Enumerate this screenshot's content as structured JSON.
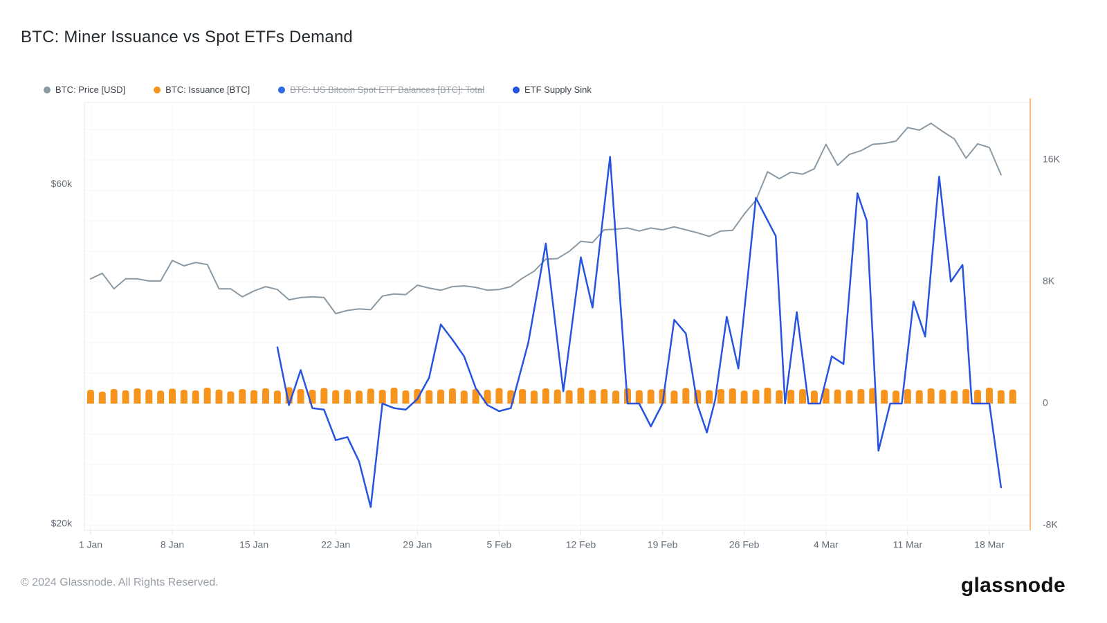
{
  "header": {
    "title": "BTC: Miner Issuance vs Spot ETFs Demand"
  },
  "legend": {
    "items": [
      {
        "label": "BTC: Price [USD]",
        "color": "#8A99A4",
        "disabled": false
      },
      {
        "label": "BTC: Issuance [BTC]",
        "color": "#F7941E",
        "disabled": false
      },
      {
        "label": "BTC: US Bitcoin Spot ETF Balances [BTC]: Total",
        "color": "#2E6BE6",
        "disabled": true
      },
      {
        "label": "ETF Supply Sink",
        "color": "#2653DF",
        "disabled": false
      }
    ]
  },
  "footer": {
    "copyright": "© 2024 Glassnode. All Rights Reserved.",
    "brand": "glassnode"
  },
  "chart_data": {
    "type": "mixed",
    "title": "BTC: Miner Issuance vs Spot ETFs Demand",
    "x_unit": "days since 1 Jan 2024",
    "x_ticks": [
      {
        "day": 0,
        "label": "1 Jan"
      },
      {
        "day": 7,
        "label": "8 Jan"
      },
      {
        "day": 14,
        "label": "15 Jan"
      },
      {
        "day": 21,
        "label": "22 Jan"
      },
      {
        "day": 28,
        "label": "29 Jan"
      },
      {
        "day": 35,
        "label": "5 Feb"
      },
      {
        "day": 42,
        "label": "12 Feb"
      },
      {
        "day": 49,
        "label": "19 Feb"
      },
      {
        "day": 56,
        "label": "26 Feb"
      },
      {
        "day": 63,
        "label": "4 Mar"
      },
      {
        "day": 70,
        "label": "11 Mar"
      },
      {
        "day": 77,
        "label": "18 Mar"
      }
    ],
    "left_axis": {
      "type": "log",
      "range": [
        19600,
        78200
      ],
      "ticks": [
        {
          "value": 60000,
          "label": "$60k"
        },
        {
          "value": 20000,
          "label": "$20k"
        }
      ]
    },
    "right_axis": {
      "type": "linear",
      "range": [
        -8320,
        19770
      ],
      "grid_step": 2000,
      "ticks": [
        {
          "value": 16000,
          "label": "16K"
        },
        {
          "value": 8000,
          "label": "8K"
        },
        {
          "value": 0,
          "label": "0"
        },
        {
          "value": -8000,
          "label": "-8K"
        }
      ]
    },
    "series": [
      {
        "name": "BTC: Price [USD]",
        "type": "line",
        "axis": "left",
        "color": "#8A99A4",
        "points": [
          [
            0,
            44200
          ],
          [
            1,
            45000
          ],
          [
            2,
            42800
          ],
          [
            3,
            44200
          ],
          [
            4,
            44200
          ],
          [
            5,
            43900
          ],
          [
            6,
            43900
          ],
          [
            7,
            46900
          ],
          [
            8,
            46100
          ],
          [
            9,
            46600
          ],
          [
            10,
            46300
          ],
          [
            11,
            42800
          ],
          [
            12,
            42800
          ],
          [
            13,
            41700
          ],
          [
            14,
            42500
          ],
          [
            15,
            43100
          ],
          [
            16,
            42700
          ],
          [
            17,
            41300
          ],
          [
            18,
            41600
          ],
          [
            19,
            41700
          ],
          [
            20,
            41600
          ],
          [
            21,
            39500
          ],
          [
            22,
            39900
          ],
          [
            23,
            40100
          ],
          [
            24,
            40000
          ],
          [
            25,
            41800
          ],
          [
            26,
            42100
          ],
          [
            27,
            42000
          ],
          [
            28,
            43300
          ],
          [
            29,
            42900
          ],
          [
            30,
            42600
          ],
          [
            31,
            43100
          ],
          [
            32,
            43200
          ],
          [
            33,
            43000
          ],
          [
            34,
            42600
          ],
          [
            35,
            42700
          ],
          [
            36,
            43100
          ],
          [
            37,
            44300
          ],
          [
            38,
            45300
          ],
          [
            39,
            47100
          ],
          [
            40,
            47200
          ],
          [
            41,
            48300
          ],
          [
            42,
            49900
          ],
          [
            43,
            49700
          ],
          [
            44,
            51800
          ],
          [
            45,
            51900
          ],
          [
            46,
            52100
          ],
          [
            47,
            51600
          ],
          [
            48,
            52100
          ],
          [
            49,
            51800
          ],
          [
            50,
            52300
          ],
          [
            51,
            51800
          ],
          [
            52,
            51300
          ],
          [
            53,
            50700
          ],
          [
            54,
            51600
          ],
          [
            55,
            51700
          ],
          [
            56,
            54500
          ],
          [
            57,
            57000
          ],
          [
            58,
            62500
          ],
          [
            59,
            61100
          ],
          [
            60,
            62400
          ],
          [
            61,
            62000
          ],
          [
            62,
            63100
          ],
          [
            63,
            68300
          ],
          [
            64,
            63800
          ],
          [
            65,
            66100
          ],
          [
            66,
            66900
          ],
          [
            67,
            68300
          ],
          [
            68,
            68500
          ],
          [
            69,
            69000
          ],
          [
            70,
            72100
          ],
          [
            71,
            71500
          ],
          [
            72,
            73100
          ],
          [
            73,
            71200
          ],
          [
            74,
            69500
          ],
          [
            75,
            65300
          ],
          [
            76,
            68400
          ],
          [
            77,
            67600
          ],
          [
            78,
            61900
          ]
        ]
      },
      {
        "name": "BTC: Issuance [BTC]",
        "type": "bar",
        "axis": "right",
        "color": "#F7941E",
        "points": [
          [
            0,
            900
          ],
          [
            1,
            780
          ],
          [
            2,
            950
          ],
          [
            3,
            870
          ],
          [
            4,
            1000
          ],
          [
            5,
            920
          ],
          [
            6,
            850
          ],
          [
            7,
            980
          ],
          [
            8,
            900
          ],
          [
            9,
            860
          ],
          [
            10,
            1050
          ],
          [
            11,
            920
          ],
          [
            12,
            800
          ],
          [
            13,
            950
          ],
          [
            14,
            880
          ],
          [
            15,
            1000
          ],
          [
            16,
            850
          ],
          [
            17,
            1080
          ],
          [
            18,
            950
          ],
          [
            19,
            900
          ],
          [
            20,
            1020
          ],
          [
            21,
            880
          ],
          [
            22,
            920
          ],
          [
            23,
            850
          ],
          [
            24,
            980
          ],
          [
            25,
            900
          ],
          [
            26,
            1050
          ],
          [
            27,
            860
          ],
          [
            28,
            950
          ],
          [
            29,
            880
          ],
          [
            30,
            920
          ],
          [
            31,
            1000
          ],
          [
            32,
            850
          ],
          [
            33,
            950
          ],
          [
            34,
            900
          ],
          [
            35,
            1020
          ],
          [
            36,
            880
          ],
          [
            37,
            950
          ],
          [
            38,
            850
          ],
          [
            39,
            1000
          ],
          [
            40,
            920
          ],
          [
            41,
            880
          ],
          [
            42,
            1050
          ],
          [
            43,
            900
          ],
          [
            44,
            950
          ],
          [
            45,
            850
          ],
          [
            46,
            1000
          ],
          [
            47,
            880
          ],
          [
            48,
            920
          ],
          [
            49,
            950
          ],
          [
            50,
            850
          ],
          [
            51,
            1020
          ],
          [
            52,
            900
          ],
          [
            53,
            880
          ],
          [
            54,
            950
          ],
          [
            55,
            1000
          ],
          [
            56,
            850
          ],
          [
            57,
            920
          ],
          [
            58,
            1050
          ],
          [
            59,
            880
          ],
          [
            60,
            900
          ],
          [
            61,
            950
          ],
          [
            62,
            850
          ],
          [
            63,
            1000
          ],
          [
            64,
            920
          ],
          [
            65,
            880
          ],
          [
            66,
            950
          ],
          [
            67,
            1020
          ],
          [
            68,
            900
          ],
          [
            69,
            850
          ],
          [
            70,
            950
          ],
          [
            71,
            880
          ],
          [
            72,
            1000
          ],
          [
            73,
            920
          ],
          [
            74,
            850
          ],
          [
            75,
            950
          ],
          [
            76,
            900
          ],
          [
            77,
            1050
          ],
          [
            78,
            880
          ],
          [
            79,
            920
          ]
        ]
      },
      {
        "name": "ETF Supply Sink",
        "type": "line",
        "axis": "right",
        "color": "#2653DF",
        "points": [
          [
            16,
            3700
          ],
          [
            17,
            -100
          ],
          [
            18,
            2200
          ],
          [
            19,
            -300
          ],
          [
            20,
            -400
          ],
          [
            21,
            -2400
          ],
          [
            22,
            -2200
          ],
          [
            23,
            -3800
          ],
          [
            24,
            -6800
          ],
          [
            25,
            0
          ],
          [
            26,
            -300
          ],
          [
            27,
            -400
          ],
          [
            28,
            300
          ],
          [
            29,
            1700
          ],
          [
            30,
            5200
          ],
          [
            31,
            4200
          ],
          [
            32,
            3100
          ],
          [
            33,
            1000
          ],
          [
            34,
            -100
          ],
          [
            35,
            -500
          ],
          [
            36,
            -300
          ],
          [
            37.5,
            4000
          ],
          [
            39,
            10500
          ],
          [
            40.5,
            800
          ],
          [
            42,
            9600
          ],
          [
            43,
            6300
          ],
          [
            44.5,
            16200
          ],
          [
            46,
            0
          ],
          [
            47,
            0
          ],
          [
            48,
            -1500
          ],
          [
            49,
            0
          ],
          [
            50,
            5500
          ],
          [
            51,
            4600
          ],
          [
            52,
            -100
          ],
          [
            52.8,
            -1900
          ],
          [
            53.5,
            200
          ],
          [
            54.5,
            5700
          ],
          [
            55.5,
            2300
          ],
          [
            57,
            13500
          ],
          [
            58.7,
            11000
          ],
          [
            59.5,
            0
          ],
          [
            60.5,
            6000
          ],
          [
            61.5,
            0
          ],
          [
            62.5,
            0
          ],
          [
            63.5,
            3100
          ],
          [
            64.5,
            2600
          ],
          [
            65.7,
            13800
          ],
          [
            66.5,
            12000
          ],
          [
            67.5,
            -3100
          ],
          [
            68.5,
            0
          ],
          [
            69.5,
            0
          ],
          [
            70.5,
            6700
          ],
          [
            71.5,
            4400
          ],
          [
            72.7,
            14900
          ],
          [
            73.7,
            8000
          ],
          [
            74.7,
            9100
          ],
          [
            75.5,
            0
          ],
          [
            77,
            0
          ],
          [
            78,
            -5500
          ]
        ]
      }
    ],
    "legend_position": "top",
    "grid": true
  }
}
